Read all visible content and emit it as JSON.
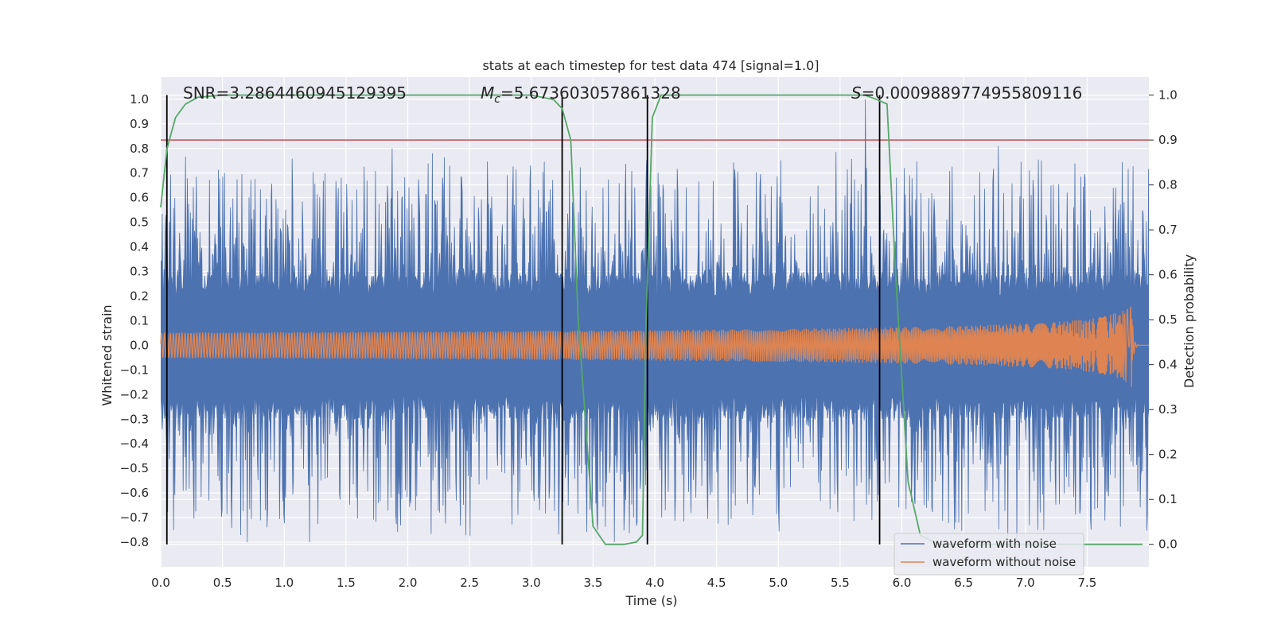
{
  "chart_data": {
    "type": "line",
    "title": "stats at each timestep for test data 474 [signal=1.0]",
    "xlabel": "Time (s)",
    "ylabel": "Whitened strain",
    "ylabel_right": "Detection probability",
    "xlim": [
      0.0,
      8.0
    ],
    "ylim": [
      -0.9,
      1.09
    ],
    "ylim_right": [
      -0.05,
      1.04
    ],
    "x_ticks": [
      "0.0",
      "0.5",
      "1.0",
      "1.5",
      "2.0",
      "2.5",
      "3.0",
      "3.5",
      "4.0",
      "4.5",
      "5.0",
      "5.5",
      "6.0",
      "6.5",
      "7.0",
      "7.5"
    ],
    "y_ticks": [
      "1.0",
      "0.9",
      "0.8",
      "0.7",
      "0.6",
      "0.5",
      "0.4",
      "0.3",
      "0.2",
      "0.1",
      "0.0",
      "−0.1",
      "−0.2",
      "−0.3",
      "−0.4",
      "−0.5",
      "−0.6",
      "−0.7",
      "−0.8"
    ],
    "y_ticks_right": [
      "1.0",
      "0.9",
      "0.8",
      "0.7",
      "0.6",
      "0.5",
      "0.4",
      "0.3",
      "0.2",
      "0.1",
      "0.0"
    ],
    "annotations": {
      "snr": "SNR=3.2864460945129395",
      "mc_prefix": "M",
      "mc_sub": "c",
      "mc_value": "=5.673603057861328",
      "s_prefix": "S",
      "s_value": "=0.0009889774955809116"
    },
    "threshold": 0.9,
    "vertical_lines_x": [
      0.05,
      3.25,
      3.94,
      5.82
    ],
    "series": [
      {
        "name": "waveform with noise",
        "color": "#4c72b0",
        "x_range": [
          0.0,
          8.0
        ],
        "typical_band": [
          -0.3,
          0.3
        ],
        "peak_envelope": [
          0.8,
          -0.8
        ],
        "max_value": 1.0,
        "min_value": -0.8
      },
      {
        "name": "waveform without noise",
        "color": "#dd8452",
        "x_range": [
          0.0,
          8.0
        ],
        "chirp_amplitude_start": 0.01,
        "chirp_amplitude_end": 0.08,
        "merger_time": 7.87
      },
      {
        "name": "Detection probability",
        "axis": "right",
        "color": "#55a868",
        "x": [
          0.0,
          0.05,
          0.12,
          0.2,
          0.3,
          0.5,
          1.0,
          2.0,
          3.0,
          3.18,
          3.25,
          3.32,
          3.38,
          3.5,
          3.6,
          3.7,
          3.75,
          3.85,
          3.9,
          3.93,
          3.98,
          4.05,
          4.5,
          5.0,
          5.5,
          5.7,
          5.8,
          5.88,
          5.95,
          6.05,
          6.15,
          6.3,
          7.0,
          7.95
        ],
        "values": [
          0.75,
          0.88,
          0.95,
          0.98,
          0.995,
          1.0,
          1.0,
          1.0,
          1.0,
          0.99,
          0.97,
          0.9,
          0.5,
          0.04,
          0.0,
          0.0,
          0.0,
          0.005,
          0.02,
          0.5,
          0.95,
          1.0,
          1.0,
          1.0,
          1.0,
          1.0,
          0.99,
          0.98,
          0.6,
          0.14,
          0.02,
          0.0,
          0.0,
          0.0
        ]
      }
    ],
    "threshold_color": "#c44e52",
    "legend": {
      "placement": "lower-right",
      "entries": [
        "waveform with noise",
        "waveform without noise"
      ]
    },
    "grid": true,
    "background_color": "#eaeaf2"
  }
}
